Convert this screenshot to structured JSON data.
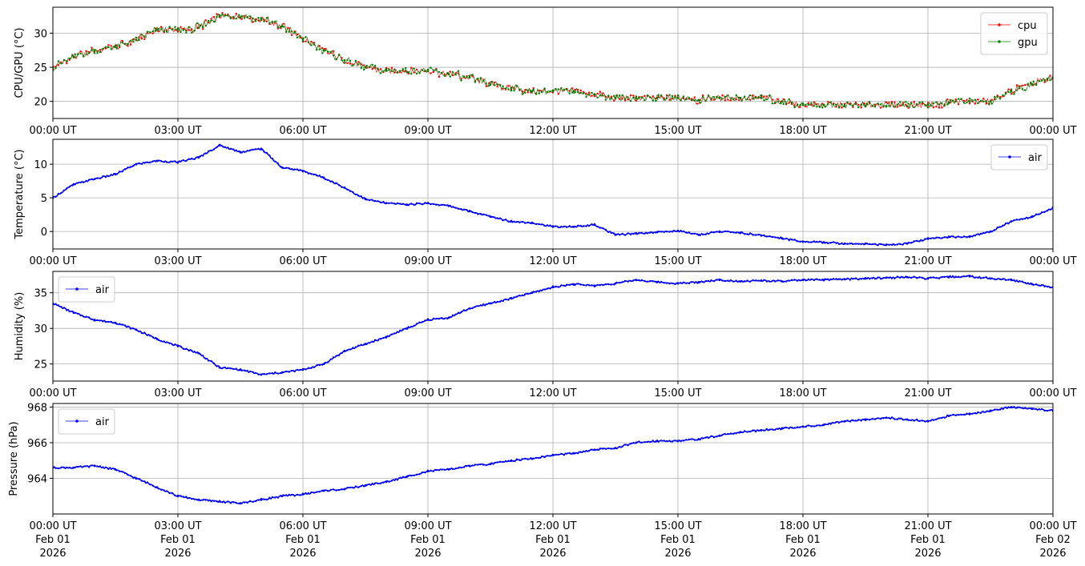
{
  "x_ticks": [
    "00:00 UT",
    "03:00 UT",
    "06:00 UT",
    "09:00 UT",
    "12:00 UT",
    "15:00 UT",
    "18:00 UT",
    "21:00 UT",
    "00:00 UT"
  ],
  "x_tick_dates": [
    "Feb 01",
    "Feb 01",
    "Feb 01",
    "Feb 01",
    "Feb 01",
    "Feb 01",
    "Feb 01",
    "Feb 01",
    "Feb 02"
  ],
  "x_tick_years": [
    "2026",
    "2026",
    "2026",
    "2026",
    "2026",
    "2026",
    "2026",
    "2026",
    "2026"
  ],
  "colors": {
    "cpu": "#ff0000",
    "gpu": "#008000",
    "air": "#0000ff",
    "grid": "#b0b0b0"
  },
  "chart_data": [
    {
      "type": "line",
      "ylabel": "CPU/GPU (°C)",
      "xlim": [
        "2026-02-01T00:00",
        "2026-02-02T00:00"
      ],
      "ylim": [
        17.5,
        33.8
      ],
      "yticks": [
        20,
        25,
        30
      ],
      "grid": true,
      "legend": "top-right",
      "x_hours": [
        0,
        0.5,
        1,
        1.5,
        2,
        2.5,
        3,
        3.5,
        4,
        4.5,
        5,
        5.5,
        6,
        6.5,
        7,
        7.5,
        8,
        8.5,
        9,
        9.5,
        10,
        10.5,
        11,
        11.5,
        12,
        12.5,
        13,
        13.5,
        14,
        14.5,
        15,
        15.5,
        16,
        16.5,
        17,
        17.5,
        18,
        18.5,
        19,
        19.5,
        20,
        20.5,
        21,
        21.5,
        22,
        22.5,
        23,
        23.5,
        24
      ],
      "series": [
        {
          "name": "cpu",
          "values": [
            25.0,
            26.5,
            27.5,
            28.0,
            29.0,
            30.5,
            30.5,
            30.8,
            32.5,
            32.3,
            32.2,
            31.0,
            29.2,
            27.5,
            26.0,
            25.0,
            24.5,
            24.3,
            24.5,
            24.0,
            23.5,
            22.5,
            22.0,
            21.5,
            21.5,
            21.5,
            21.0,
            20.5,
            20.5,
            20.5,
            20.5,
            20.2,
            20.5,
            20.5,
            20.5,
            20.0,
            19.5,
            19.5,
            19.3,
            19.3,
            19.3,
            19.3,
            19.5,
            19.8,
            20.0,
            20.0,
            21.5,
            22.5,
            23.5
          ]
        },
        {
          "name": "gpu",
          "values": [
            25.0,
            26.5,
            27.5,
            28.0,
            29.0,
            30.5,
            30.5,
            30.8,
            32.5,
            32.3,
            32.2,
            31.0,
            29.2,
            27.5,
            26.0,
            25.0,
            24.5,
            24.3,
            24.5,
            24.0,
            23.5,
            22.5,
            22.0,
            21.5,
            21.5,
            21.5,
            21.0,
            20.5,
            20.5,
            20.5,
            20.5,
            20.2,
            20.5,
            20.5,
            20.5,
            20.0,
            19.5,
            19.5,
            19.3,
            19.3,
            19.3,
            19.3,
            19.5,
            19.8,
            20.0,
            20.0,
            21.5,
            22.5,
            23.5
          ]
        }
      ]
    },
    {
      "type": "line",
      "ylabel": "Temperature (°C)",
      "xlim": [
        "2026-02-01T00:00",
        "2026-02-02T00:00"
      ],
      "ylim": [
        -2.6,
        13.7
      ],
      "yticks": [
        0,
        5,
        10
      ],
      "grid": true,
      "legend": "top-right",
      "x_hours": [
        0,
        0.5,
        1,
        1.5,
        2,
        2.5,
        3,
        3.5,
        4,
        4.5,
        5,
        5.5,
        6,
        6.5,
        7,
        7.5,
        8,
        8.5,
        9,
        9.5,
        10,
        10.5,
        11,
        11.5,
        12,
        12.5,
        13,
        13.5,
        14,
        14.5,
        15,
        15.5,
        16,
        16.5,
        17,
        17.5,
        18,
        18.5,
        19,
        19.5,
        20,
        20.5,
        21,
        21.5,
        22,
        22.5,
        23,
        23.5,
        24
      ],
      "series": [
        {
          "name": "air",
          "values": [
            5.0,
            7.0,
            7.8,
            8.5,
            10.0,
            10.5,
            10.3,
            11.0,
            12.8,
            11.8,
            12.3,
            9.5,
            9.0,
            8.0,
            6.5,
            4.8,
            4.2,
            4.0,
            4.2,
            3.8,
            3.0,
            2.2,
            1.5,
            1.3,
            0.7,
            0.7,
            1.0,
            -0.5,
            -0.3,
            -0.1,
            0.1,
            -0.5,
            0.0,
            -0.2,
            -0.6,
            -1.0,
            -1.5,
            -1.6,
            -1.8,
            -1.8,
            -2.0,
            -1.8,
            -1.1,
            -0.8,
            -0.8,
            0.0,
            1.5,
            2.2,
            3.5
          ]
        }
      ]
    },
    {
      "type": "line",
      "ylabel": "Humidity (%)",
      "xlim": [
        "2026-02-01T00:00",
        "2026-02-02T00:00"
      ],
      "ylim": [
        22.6,
        38.0
      ],
      "yticks": [
        25,
        30,
        35
      ],
      "grid": true,
      "legend": "top-left",
      "x_hours": [
        0,
        0.5,
        1,
        1.5,
        2,
        2.5,
        3,
        3.5,
        4,
        4.5,
        5,
        5.5,
        6,
        6.5,
        7,
        7.5,
        8,
        8.5,
        9,
        9.5,
        10,
        10.5,
        11,
        11.5,
        12,
        12.5,
        13,
        13.5,
        14,
        14.5,
        15,
        15.5,
        16,
        16.5,
        17,
        17.5,
        18,
        18.5,
        19,
        19.5,
        20,
        20.5,
        21,
        21.5,
        22,
        22.5,
        23,
        23.5,
        24
      ],
      "series": [
        {
          "name": "air",
          "values": [
            33.5,
            32.2,
            31.2,
            30.8,
            29.8,
            28.5,
            27.5,
            26.5,
            24.5,
            24.2,
            23.5,
            23.8,
            24.2,
            25.0,
            26.8,
            27.8,
            28.8,
            30.0,
            31.2,
            31.5,
            32.8,
            33.5,
            34.2,
            35.0,
            35.8,
            36.2,
            36.0,
            36.3,
            36.8,
            36.5,
            36.3,
            36.5,
            36.8,
            36.6,
            36.7,
            36.6,
            36.8,
            36.8,
            36.9,
            37.0,
            37.1,
            37.2,
            37.0,
            37.2,
            37.3,
            37.0,
            36.8,
            36.2,
            35.8
          ]
        }
      ]
    },
    {
      "type": "line",
      "ylabel": "Pressure (hPa)",
      "xlim": [
        "2026-02-01T00:00",
        "2026-02-02T00:00"
      ],
      "ylim": [
        962.0,
        968.2
      ],
      "yticks": [
        964,
        966,
        968
      ],
      "grid": true,
      "legend": "top-left",
      "x_hours": [
        0,
        0.5,
        1,
        1.5,
        2,
        2.5,
        3,
        3.5,
        4,
        4.5,
        5,
        5.5,
        6,
        6.5,
        7,
        7.5,
        8,
        8.5,
        9,
        9.5,
        10,
        10.5,
        11,
        11.5,
        12,
        12.5,
        13,
        13.5,
        14,
        14.5,
        15,
        15.5,
        16,
        16.5,
        17,
        17.5,
        18,
        18.5,
        19,
        19.5,
        20,
        20.5,
        21,
        21.5,
        22,
        22.5,
        23,
        23.5,
        24
      ],
      "series": [
        {
          "name": "air",
          "values": [
            964.6,
            964.6,
            964.7,
            964.5,
            964.0,
            963.5,
            963.0,
            962.8,
            962.7,
            962.6,
            962.8,
            963.0,
            963.1,
            963.3,
            963.4,
            963.6,
            963.8,
            964.1,
            964.4,
            964.5,
            964.7,
            964.8,
            965.0,
            965.1,
            965.3,
            965.4,
            965.6,
            965.7,
            966.0,
            966.1,
            966.1,
            966.2,
            966.4,
            966.6,
            966.7,
            966.8,
            966.9,
            967.0,
            967.2,
            967.3,
            967.4,
            967.3,
            967.2,
            967.5,
            967.6,
            967.8,
            968.0,
            967.9,
            967.8
          ]
        }
      ]
    }
  ]
}
